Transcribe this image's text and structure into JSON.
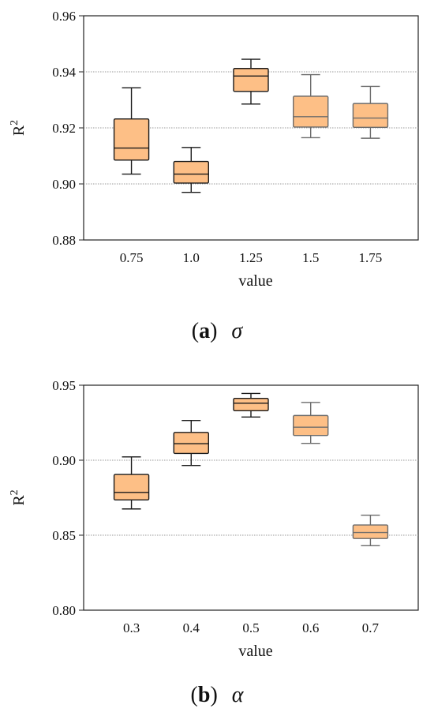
{
  "chart_data": [
    {
      "type": "box",
      "caption_paren_open": "(",
      "caption_letter": "a",
      "caption_paren_close": ")",
      "caption_symbol": "σ",
      "xlabel": "value",
      "ylabel": "R",
      "ylabel_sup": "2",
      "ylim": [
        0.88,
        0.96
      ],
      "yticks": [
        "0.88",
        "0.90",
        "0.92",
        "0.94",
        "0.96"
      ],
      "ytick_values": [
        0.88,
        0.9,
        0.92,
        0.94,
        0.96
      ],
      "grid_lines": [
        0.9,
        0.92,
        0.94
      ],
      "categories": [
        "0.75",
        "1.0",
        "1.25",
        "1.5",
        "1.75"
      ],
      "boxes": [
        {
          "min": 0.9035,
          "q1": 0.9085,
          "median": 0.9128,
          "q3": 0.9232,
          "max": 0.9343
        },
        {
          "min": 0.897,
          "q1": 0.9003,
          "median": 0.9035,
          "q3": 0.908,
          "max": 0.913
        },
        {
          "min": 0.9285,
          "q1": 0.933,
          "median": 0.9385,
          "q3": 0.9412,
          "max": 0.9445
        },
        {
          "min": 0.9165,
          "q1": 0.9203,
          "median": 0.924,
          "q3": 0.9313,
          "max": 0.939
        },
        {
          "min": 0.9163,
          "q1": 0.9202,
          "median": 0.9235,
          "q3": 0.9287,
          "max": 0.9348
        }
      ],
      "colors": {
        "box_fill": "#fdbf86",
        "box_stroke_dark": "#1a1a1a",
        "box_stroke_light": "#6b6b6b",
        "grid": "#9a9a9a"
      }
    },
    {
      "type": "box",
      "caption_paren_open": "(",
      "caption_letter": "b",
      "caption_paren_close": ")",
      "caption_symbol": "α",
      "xlabel": "value",
      "ylabel": "R",
      "ylabel_sup": "2",
      "ylim": [
        0.8,
        0.95
      ],
      "yticks": [
        "0.80",
        "0.85",
        "0.90",
        "0.95"
      ],
      "ytick_values": [
        0.8,
        0.85,
        0.9,
        0.95
      ],
      "grid_lines": [
        0.85,
        0.9
      ],
      "categories": [
        "0.3",
        "0.4",
        "0.5",
        "0.6",
        "0.7"
      ],
      "boxes": [
        {
          "min": 0.8675,
          "q1": 0.8735,
          "median": 0.8785,
          "q3": 0.8905,
          "max": 0.9022
        },
        {
          "min": 0.8965,
          "q1": 0.9045,
          "median": 0.911,
          "q3": 0.9185,
          "max": 0.9265
        },
        {
          "min": 0.9288,
          "q1": 0.933,
          "median": 0.938,
          "q3": 0.9412,
          "max": 0.9445
        },
        {
          "min": 0.9112,
          "q1": 0.9165,
          "median": 0.922,
          "q3": 0.9298,
          "max": 0.9385
        },
        {
          "min": 0.843,
          "q1": 0.8478,
          "median": 0.8518,
          "q3": 0.8568,
          "max": 0.8633
        }
      ],
      "colors": {
        "box_fill": "#fdbf86",
        "box_stroke_dark": "#1a1a1a",
        "box_stroke_light": "#6b6b6b",
        "grid": "#9a9a9a"
      }
    }
  ]
}
